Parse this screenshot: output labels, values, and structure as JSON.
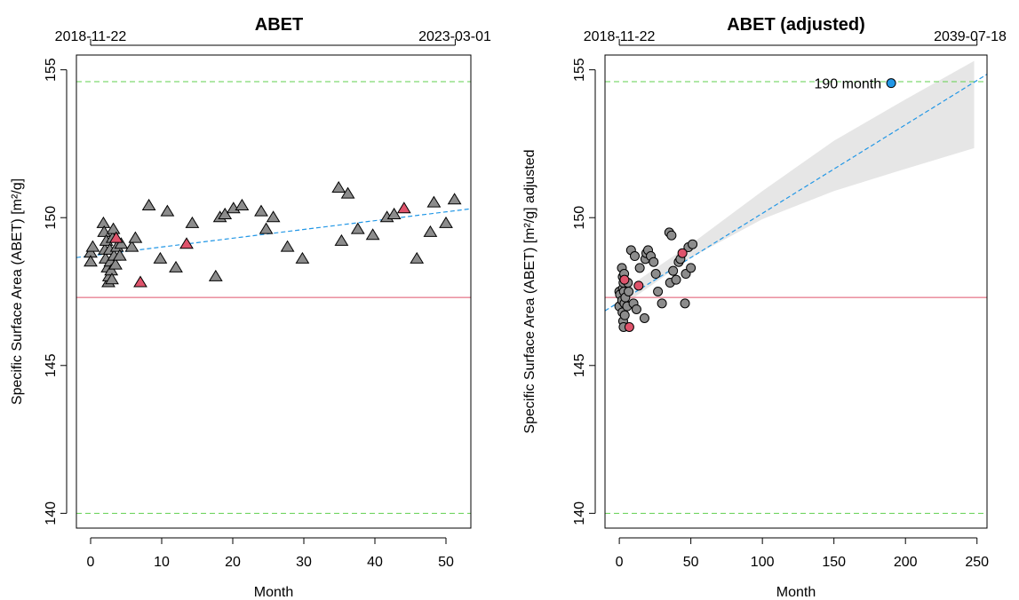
{
  "chart_data": [
    {
      "type": "scatter",
      "title": "ABET",
      "xlabel": "Month",
      "ylabel": "Specific Surface Area (ABET) [m²/g]",
      "top_labels": {
        "left": "2018-11-22",
        "right": "2023-03-01"
      },
      "xlim": [
        -2,
        53.5
      ],
      "ylim": [
        139.5,
        155.5
      ],
      "x_ticks": [
        0,
        10,
        20,
        30,
        40,
        50
      ],
      "y_ticks": [
        140,
        145,
        150,
        155
      ],
      "marker": "triangle",
      "colors": {
        "normal": "#8c8c8c",
        "highlight": "#df536b",
        "spec_limit": "#61d04f",
        "ref_line": "#df536b",
        "trend": "#2297e6"
      },
      "spec_limits": [
        140,
        154.6
      ],
      "reference_line": 147.3,
      "trend": {
        "x": [
          -2,
          53.5
        ],
        "y": [
          148.65,
          150.3
        ]
      },
      "points": [
        {
          "x": 0,
          "y": 148.8
        },
        {
          "x": 0,
          "y": 148.5
        },
        {
          "x": 0.3,
          "y": 149.0
        },
        {
          "x": 1.8,
          "y": 149.8
        },
        {
          "x": 1.9,
          "y": 149.5
        },
        {
          "x": 2.0,
          "y": 148.9
        },
        {
          "x": 2.1,
          "y": 148.6
        },
        {
          "x": 2.2,
          "y": 149.2
        },
        {
          "x": 2.4,
          "y": 148.3
        },
        {
          "x": 2.5,
          "y": 147.8
        },
        {
          "x": 2.6,
          "y": 148.0
        },
        {
          "x": 2.7,
          "y": 148.9
        },
        {
          "x": 2.8,
          "y": 148.5
        },
        {
          "x": 2.9,
          "y": 148.2
        },
        {
          "x": 3.0,
          "y": 147.9
        },
        {
          "x": 3.1,
          "y": 149.3
        },
        {
          "x": 3.2,
          "y": 149.6
        },
        {
          "x": 3.3,
          "y": 148.7
        },
        {
          "x": 3.5,
          "y": 148.4
        },
        {
          "x": 3.7,
          "y": 149.0
        },
        {
          "x": 4.1,
          "y": 148.7
        },
        {
          "x": 4.3,
          "y": 149.1
        },
        {
          "x": 5.8,
          "y": 149.0
        },
        {
          "x": 6.3,
          "y": 149.3
        },
        {
          "x": 8.2,
          "y": 150.4
        },
        {
          "x": 9.8,
          "y": 148.6
        },
        {
          "x": 10.8,
          "y": 150.2
        },
        {
          "x": 12.0,
          "y": 148.3
        },
        {
          "x": 14.3,
          "y": 149.8
        },
        {
          "x": 17.6,
          "y": 148.0
        },
        {
          "x": 18.2,
          "y": 150.0
        },
        {
          "x": 18.9,
          "y": 150.1
        },
        {
          "x": 20.1,
          "y": 150.3
        },
        {
          "x": 21.3,
          "y": 150.4
        },
        {
          "x": 24.0,
          "y": 150.2
        },
        {
          "x": 24.7,
          "y": 149.6
        },
        {
          "x": 25.7,
          "y": 150.0
        },
        {
          "x": 27.7,
          "y": 149.0
        },
        {
          "x": 29.8,
          "y": 148.6
        },
        {
          "x": 34.9,
          "y": 151.0
        },
        {
          "x": 35.3,
          "y": 149.2
        },
        {
          "x": 36.2,
          "y": 150.8
        },
        {
          "x": 37.6,
          "y": 149.6
        },
        {
          "x": 39.7,
          "y": 149.4
        },
        {
          "x": 41.7,
          "y": 150.0
        },
        {
          "x": 42.7,
          "y": 150.1
        },
        {
          "x": 45.9,
          "y": 148.6
        },
        {
          "x": 47.8,
          "y": 149.5
        },
        {
          "x": 48.3,
          "y": 150.5
        },
        {
          "x": 50.0,
          "y": 149.8
        },
        {
          "x": 51.2,
          "y": 150.6
        }
      ],
      "highlighted": [
        {
          "x": 3.6,
          "y": 149.3
        },
        {
          "x": 7.0,
          "y": 147.8
        },
        {
          "x": 13.5,
          "y": 149.1
        },
        {
          "x": 44.1,
          "y": 150.3
        }
      ]
    },
    {
      "type": "scatter",
      "title": "ABET (adjusted)",
      "xlabel": "Month",
      "ylabel": "Specific Surface Area (ABET) [m²/g] adjusted",
      "top_labels": {
        "left": "2018-11-22",
        "right": "2039-07-18"
      },
      "xlim": [
        -10,
        257
      ],
      "ylim": [
        139.5,
        155.5
      ],
      "x_ticks": [
        0,
        50,
        100,
        150,
        200,
        250
      ],
      "y_ticks": [
        140,
        145,
        150,
        155
      ],
      "marker": "circle",
      "colors": {
        "normal": "#8c8c8c",
        "highlight": "#df536b",
        "spec_limit": "#61d04f",
        "ref_line": "#df536b",
        "trend": "#2297e6",
        "band": "#e6e6e6",
        "prediction": "#2297e6"
      },
      "spec_limits": [
        140,
        154.6
      ],
      "reference_line": 147.3,
      "trend": {
        "x": [
          -10,
          257
        ],
        "y": [
          146.85,
          154.85
        ]
      },
      "confidence_band": {
        "x": [
          0,
          50,
          100,
          150,
          200,
          248
        ],
        "upper": [
          147.45,
          149.1,
          150.9,
          152.6,
          154.0,
          155.3
        ],
        "lower": [
          146.95,
          148.65,
          149.95,
          150.9,
          151.65,
          152.35
        ]
      },
      "prediction": {
        "x": 190,
        "y": 154.55,
        "label": "190 month"
      },
      "points": [
        {
          "x": 0,
          "y": 147.5
        },
        {
          "x": 0,
          "y": 147.0
        },
        {
          "x": 0.5,
          "y": 147.4
        },
        {
          "x": 1.8,
          "y": 148.3
        },
        {
          "x": 2.0,
          "y": 147.2
        },
        {
          "x": 2.2,
          "y": 146.8
        },
        {
          "x": 2.4,
          "y": 148.0
        },
        {
          "x": 2.5,
          "y": 147.6
        },
        {
          "x": 2.7,
          "y": 146.5
        },
        {
          "x": 2.9,
          "y": 147.8
        },
        {
          "x": 3.0,
          "y": 146.3
        },
        {
          "x": 3.2,
          "y": 147.5
        },
        {
          "x": 3.4,
          "y": 148.1
        },
        {
          "x": 3.6,
          "y": 147.1
        },
        {
          "x": 3.8,
          "y": 146.7
        },
        {
          "x": 4.2,
          "y": 147.3
        },
        {
          "x": 5.5,
          "y": 147.0
        },
        {
          "x": 6.0,
          "y": 147.8
        },
        {
          "x": 6.5,
          "y": 147.5
        },
        {
          "x": 8.2,
          "y": 148.9
        },
        {
          "x": 9.9,
          "y": 147.1
        },
        {
          "x": 10.8,
          "y": 148.7
        },
        {
          "x": 12.0,
          "y": 146.9
        },
        {
          "x": 14.3,
          "y": 148.3
        },
        {
          "x": 17.6,
          "y": 146.6
        },
        {
          "x": 18.2,
          "y": 148.6
        },
        {
          "x": 18.9,
          "y": 148.8
        },
        {
          "x": 20.1,
          "y": 148.9
        },
        {
          "x": 22.0,
          "y": 148.7
        },
        {
          "x": 24.0,
          "y": 148.5
        },
        {
          "x": 25.5,
          "y": 148.1
        },
        {
          "x": 27.0,
          "y": 147.5
        },
        {
          "x": 29.8,
          "y": 147.1
        },
        {
          "x": 34.9,
          "y": 149.5
        },
        {
          "x": 35.5,
          "y": 147.8
        },
        {
          "x": 36.5,
          "y": 149.4
        },
        {
          "x": 37.6,
          "y": 148.2
        },
        {
          "x": 39.7,
          "y": 147.9
        },
        {
          "x": 41.5,
          "y": 148.5
        },
        {
          "x": 42.7,
          "y": 148.6
        },
        {
          "x": 45.9,
          "y": 147.1
        },
        {
          "x": 46.5,
          "y": 148.1
        },
        {
          "x": 48.3,
          "y": 149.0
        },
        {
          "x": 50.0,
          "y": 148.3
        },
        {
          "x": 51.2,
          "y": 149.1
        }
      ],
      "highlighted": [
        {
          "x": 3.6,
          "y": 147.9
        },
        {
          "x": 7.0,
          "y": 146.3
        },
        {
          "x": 13.5,
          "y": 147.7
        },
        {
          "x": 44.1,
          "y": 148.8
        }
      ]
    }
  ]
}
